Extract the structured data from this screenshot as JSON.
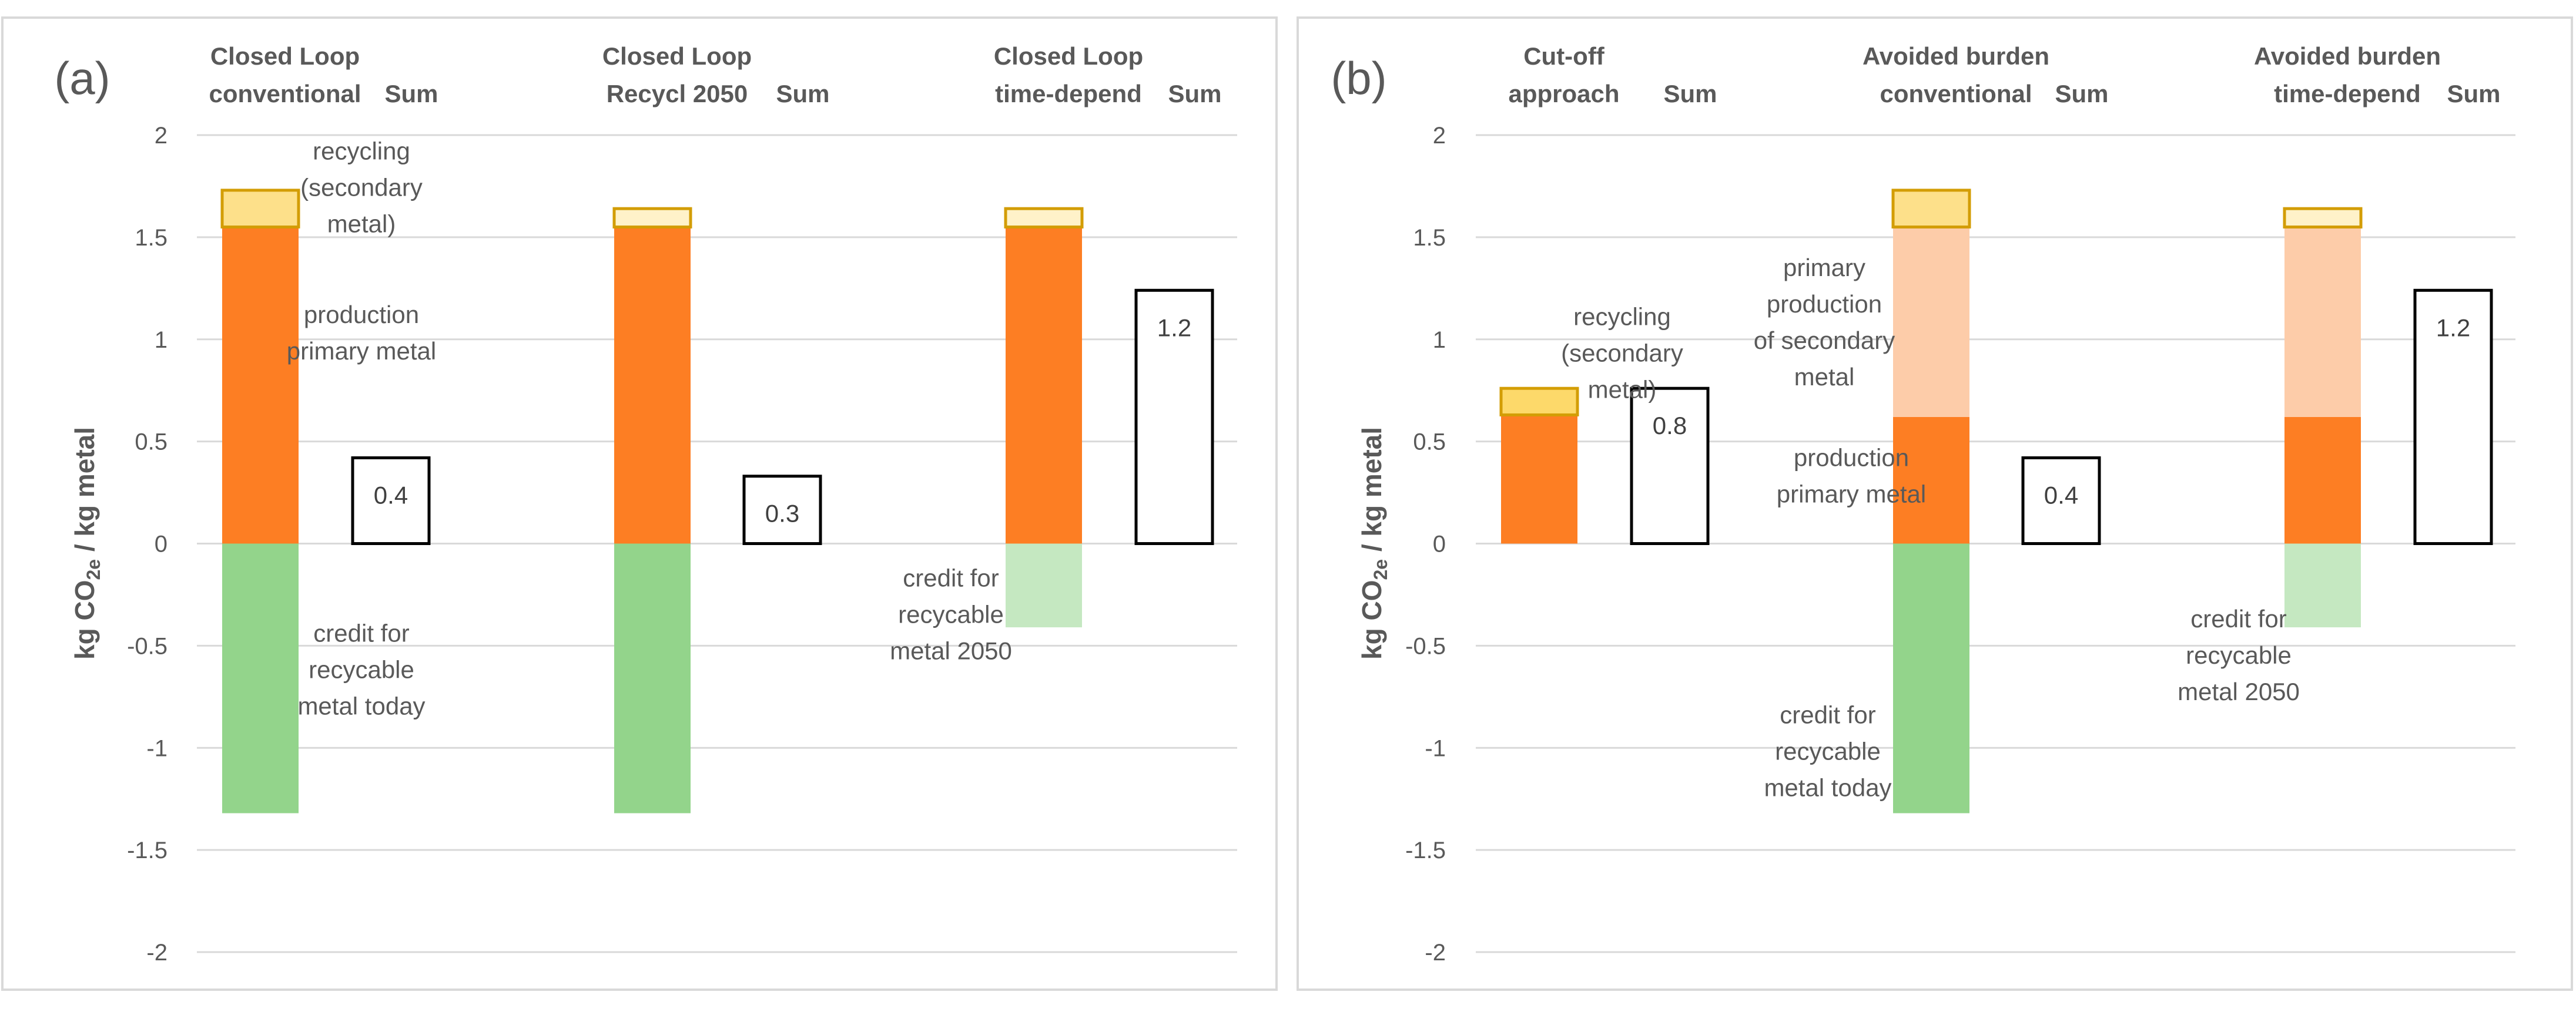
{
  "chart_data": [
    {
      "panel_label": "(a)",
      "type": "bar",
      "stacked": true,
      "ylabel": "kg CO2e / kg metal",
      "ylabel_main": "kg CO",
      "ylabel_sub": "2e",
      "ylabel_rest": " / kg metal",
      "ylim": [
        -2,
        2
      ],
      "yticks": [
        "2",
        "1.5",
        "1",
        "0.5",
        "0",
        "-0.5",
        "-1",
        "-1.5",
        "-2"
      ],
      "gridlines": true,
      "groups": [
        {
          "title_line1": "Closed Loop",
          "title_line2": "conventional",
          "sum_label": "Sum",
          "segments": [
            {
              "name": "production primary metal",
              "value": 1.55,
              "color": "#fd7e23"
            },
            {
              "name": "recycling (secondary metal)",
              "value": 0.18,
              "color": "#fde08a",
              "border": "#d39d05"
            },
            {
              "name": "credit for recyclable metal today",
              "value": -1.32,
              "color": "#93d48b"
            }
          ],
          "sum_value": 0.42,
          "sum_text": "0.4"
        },
        {
          "title_line1": "Closed Loop",
          "title_line2": "Recycl 2050",
          "sum_label": "Sum",
          "segments": [
            {
              "name": "production primary metal",
              "value": 1.55,
              "color": "#fd7e23"
            },
            {
              "name": "recycling (secondary metal)",
              "value": 0.09,
              "color": "#fff2c9",
              "border": "#d39d05"
            },
            {
              "name": "credit for recyclable metal today",
              "value": -1.32,
              "color": "#93d48b"
            }
          ],
          "sum_value": 0.33,
          "sum_text": "0.3"
        },
        {
          "title_line1": "Closed Loop",
          "title_line2": "time-depend",
          "sum_label": "Sum",
          "segments": [
            {
              "name": "production primary metal",
              "value": 1.55,
              "color": "#fd7e23"
            },
            {
              "name": "recycling (secondary metal)",
              "value": 0.09,
              "color": "#fff2c9",
              "border": "#d39d05"
            },
            {
              "name": "credit for recyclable metal 2050",
              "value": -0.41,
              "color": "#c5e8c1"
            }
          ],
          "sum_value": 1.24,
          "sum_text": "1.2"
        }
      ],
      "annotations": [
        {
          "lines": [
            "recycling",
            "(secondary",
            "metal)"
          ],
          "group": 0,
          "y": 1.88
        },
        {
          "lines": [
            "production",
            "primary metal"
          ],
          "group": 0,
          "y": 1.08
        },
        {
          "lines": [
            "credit for",
            "recycable",
            "metal today"
          ],
          "group": 0,
          "y": -0.48
        },
        {
          "lines": [
            "credit for",
            "recycable",
            "metal 2050"
          ],
          "group": 2,
          "y": -0.21
        }
      ]
    },
    {
      "panel_label": "(b)",
      "type": "bar",
      "stacked": true,
      "ylabel": "kg CO2e / kg metal",
      "ylabel_main": "kg CO",
      "ylabel_sub": "2e",
      "ylabel_rest": " / kg metal",
      "ylim": [
        -2,
        2
      ],
      "yticks": [
        "2",
        "1.5",
        "1",
        "0.5",
        "0",
        "-0.5",
        "-1",
        "-1.5",
        "-2"
      ],
      "gridlines": true,
      "groups": [
        {
          "title_line1": "Cut-off",
          "title_line2": "approach",
          "sum_label": "Sum",
          "segments": [
            {
              "name": "production primary metal",
              "value": 0.63,
              "color": "#fd7e23"
            },
            {
              "name": "recycling (secondary metal)",
              "value": 0.13,
              "color": "#fdd96a",
              "border": "#d39d05"
            }
          ],
          "sum_value": 0.76,
          "sum_text": "0.8"
        },
        {
          "title_line1": "Avoided burden",
          "title_line2": "conventional",
          "sum_label": "Sum",
          "segments": [
            {
              "name": "production primary metal",
              "value": 0.62,
              "color": "#fd7e23"
            },
            {
              "name": "primary production of secondary metal",
              "value": 0.93,
              "color": "#fdcca9"
            },
            {
              "name": "recycling (secondary metal)",
              "value": 0.18,
              "color": "#fde08a",
              "border": "#d39d05"
            },
            {
              "name": "credit for recyclable metal today",
              "value": -1.32,
              "color": "#93d48b"
            }
          ],
          "sum_value": 0.42,
          "sum_text": "0.4"
        },
        {
          "title_line1": "Avoided burden",
          "title_line2": "time-depend",
          "sum_label": "Sum",
          "segments": [
            {
              "name": "production primary metal",
              "value": 0.62,
              "color": "#fd7e23"
            },
            {
              "name": "primary production of secondary metal",
              "value": 0.93,
              "color": "#fdcca9"
            },
            {
              "name": "recycling (secondary metal)",
              "value": 0.09,
              "color": "#fff2c9",
              "border": "#d39d05"
            },
            {
              "name": "credit for recyclable metal 2050",
              "value": -0.41,
              "color": "#c5e8c1"
            }
          ],
          "sum_value": 1.24,
          "sum_text": "1.2"
        }
      ],
      "annotations": [
        {
          "lines": [
            "recycling",
            "(secondary",
            "metal)"
          ],
          "group": 0,
          "y": 1.07
        },
        {
          "lines": [
            "primary",
            "production",
            "of secondary",
            "metal"
          ],
          "group": 1,
          "y": 1.31
        },
        {
          "lines": [
            "production",
            "primary metal"
          ],
          "group": 1,
          "y": 0.38
        },
        {
          "lines": [
            "credit for",
            "recycable",
            "metal today"
          ],
          "group": 1,
          "y": -0.88
        },
        {
          "lines": [
            "credit for",
            "recycable",
            "metal 2050"
          ],
          "group": 2,
          "y": -0.41
        }
      ]
    }
  ]
}
